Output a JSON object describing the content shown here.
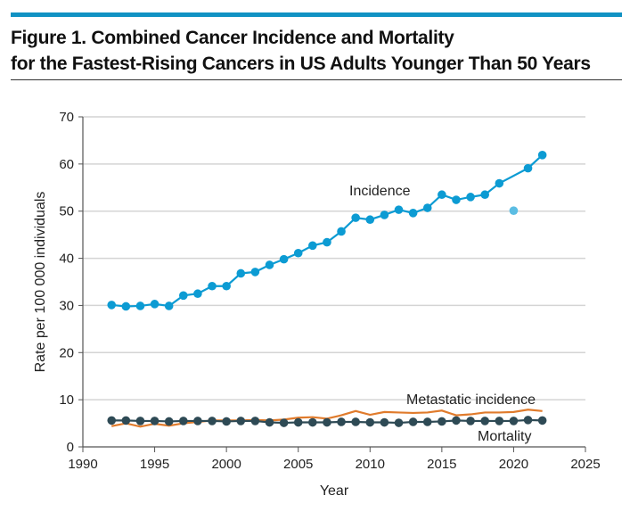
{
  "header": {
    "title_line1": "Figure 1. Combined Cancer Incidence and Mortality",
    "title_line2": "for the Fastest-Rising Cancers in US Adults Younger Than 50 Years"
  },
  "chart_data": {
    "type": "line",
    "title": "Figure 1. Combined Cancer Incidence and Mortality for the Fastest-Rising Cancers in US Adults Younger Than 50 Years",
    "xlabel": "Year",
    "ylabel": "Rate per 100 000 individuals",
    "xlim": [
      1990,
      2025
    ],
    "ylim": [
      0,
      70
    ],
    "xticks": [
      1990,
      1995,
      2000,
      2005,
      2010,
      2015,
      2020,
      2025
    ],
    "yticks": [
      0,
      10,
      20,
      30,
      40,
      50,
      60,
      70
    ],
    "grid": true,
    "series": [
      {
        "name": "Incidence",
        "color": "#0c9bd3",
        "markers": true,
        "x": [
          1992,
          1993,
          1994,
          1995,
          1996,
          1997,
          1998,
          1999,
          2000,
          2001,
          2002,
          2003,
          2004,
          2005,
          2006,
          2007,
          2008,
          2009,
          2010,
          2011,
          2012,
          2013,
          2014,
          2015,
          2016,
          2017,
          2018,
          2019,
          2021,
          2022
        ],
        "y": [
          30.1,
          29.8,
          29.9,
          30.3,
          29.9,
          32.1,
          32.5,
          34.1,
          34.1,
          36.8,
          37.1,
          38.6,
          39.8,
          41.1,
          42.7,
          43.4,
          45.7,
          48.6,
          48.2,
          49.2,
          50.3,
          49.6,
          50.7,
          53.5,
          52.4,
          53.0,
          53.5,
          55.9,
          59.1,
          61.9
        ]
      },
      {
        "name": "Incidence 2020 (outlier)",
        "color": "#5bbde3",
        "markers": true,
        "line": false,
        "x": [
          2020
        ],
        "y": [
          50.1
        ]
      },
      {
        "name": "Metastatic incidence",
        "color": "#e07b2c",
        "markers": false,
        "x": [
          1992,
          1993,
          1994,
          1995,
          1996,
          1997,
          1998,
          1999,
          2000,
          2001,
          2002,
          2003,
          2004,
          2005,
          2006,
          2007,
          2008,
          2009,
          2010,
          2011,
          2012,
          2013,
          2014,
          2015,
          2016,
          2017,
          2018,
          2019,
          2020,
          2021,
          2022
        ],
        "y": [
          4.4,
          5.0,
          4.3,
          4.9,
          4.5,
          5.0,
          5.3,
          5.6,
          5.6,
          5.6,
          5.7,
          5.6,
          5.8,
          6.2,
          6.3,
          6.0,
          6.7,
          7.6,
          6.8,
          7.4,
          7.3,
          7.2,
          7.3,
          7.7,
          6.7,
          6.9,
          7.3,
          7.3,
          7.4,
          7.9,
          7.6
        ]
      },
      {
        "name": "Mortality",
        "color": "#2e4a55",
        "markers": true,
        "x": [
          1992,
          1993,
          1994,
          1995,
          1996,
          1997,
          1998,
          1999,
          2000,
          2001,
          2002,
          2003,
          2004,
          2005,
          2006,
          2007,
          2008,
          2009,
          2010,
          2011,
          2012,
          2013,
          2014,
          2015,
          2016,
          2017,
          2018,
          2019,
          2020,
          2021,
          2022
        ],
        "y": [
          5.6,
          5.6,
          5.5,
          5.5,
          5.4,
          5.5,
          5.5,
          5.5,
          5.4,
          5.5,
          5.5,
          5.2,
          5.1,
          5.2,
          5.2,
          5.2,
          5.3,
          5.3,
          5.2,
          5.2,
          5.1,
          5.3,
          5.3,
          5.4,
          5.6,
          5.5,
          5.5,
          5.5,
          5.5,
          5.7,
          5.6
        ]
      }
    ],
    "annotations": [
      "Incidence",
      "Metastatic incidence",
      "Mortality"
    ]
  }
}
